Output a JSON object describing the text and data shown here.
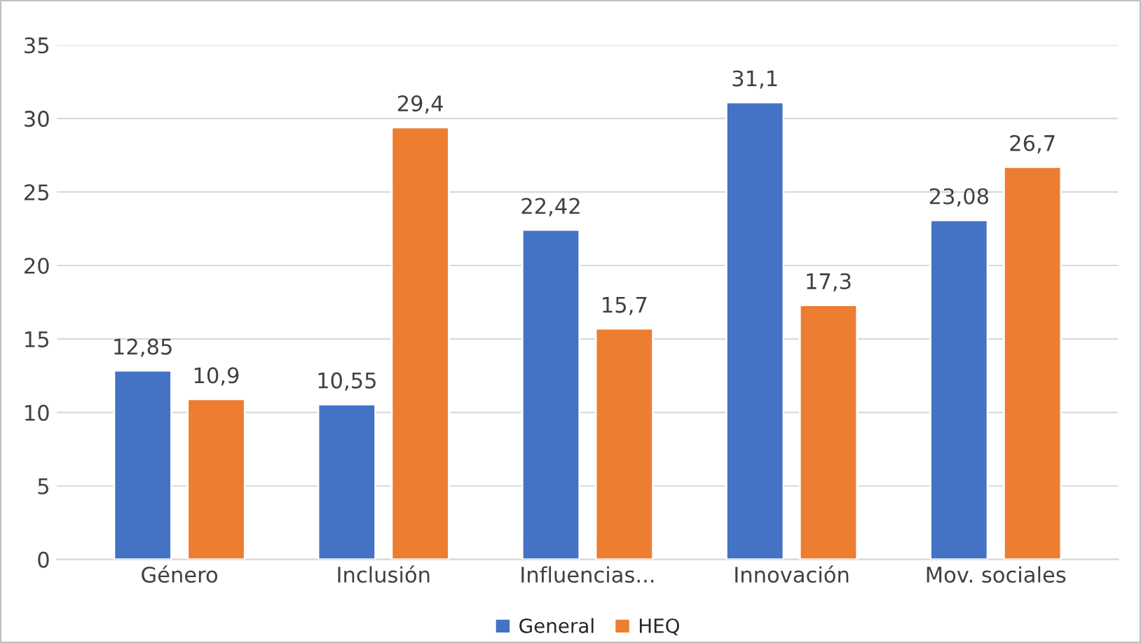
{
  "chart_data": {
    "type": "bar",
    "categories": [
      "Género",
      "Inclusión",
      "Influencias...",
      "Innovación",
      "Mov. sociales"
    ],
    "series": [
      {
        "name": "General",
        "color": "#4472c4",
        "values": [
          12.85,
          10.55,
          22.42,
          31.1,
          23.08
        ],
        "value_labels": [
          "12,85",
          "10,55",
          "22,42",
          "31,1",
          "23,08"
        ]
      },
      {
        "name": "HEQ",
        "color": "#ed7d31",
        "values": [
          10.9,
          29.4,
          15.7,
          17.3,
          26.7
        ],
        "value_labels": [
          "10,9",
          "29,4",
          "15,7",
          "17,3",
          "26,7"
        ]
      }
    ],
    "ylim": [
      0,
      35
    ],
    "yticks": [
      0,
      5,
      10,
      15,
      20,
      25,
      30,
      35
    ],
    "grid": "y",
    "legend": "bottom"
  }
}
